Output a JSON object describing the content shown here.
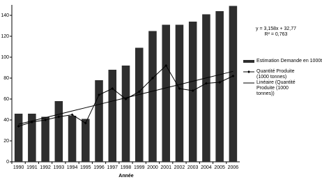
{
  "chart_data": {
    "type": "bar_line",
    "x_label": "Année",
    "categories": [
      "1990",
      "1991",
      "1992",
      "1993",
      "1994",
      "1995",
      "1996",
      "1997",
      "1998",
      "1999",
      "2000",
      "2001",
      "2002",
      "2003",
      "2004",
      "2005",
      "2006"
    ],
    "series": [
      {
        "name": "Estimation Demande en 1000t",
        "kind": "bar",
        "color": "#2e2e2e",
        "values": [
          46,
          46,
          43,
          58,
          44,
          41,
          78,
          88,
          92,
          109,
          125,
          131,
          131,
          134,
          141,
          144,
          149
        ]
      },
      {
        "name": "Quantité Produite (1000 tonnes)",
        "kind": "line",
        "marker": true,
        "color": "#000000",
        "values": [
          34,
          38,
          40,
          43,
          45,
          37,
          64,
          70,
          60,
          67,
          80,
          92,
          70,
          68,
          75,
          76,
          82
        ]
      },
      {
        "name": "Linéaire (Quantité Produite (1000 tonnes))",
        "kind": "line",
        "marker": false,
        "color": "#000000",
        "values": [
          35.928,
          39.086,
          42.244,
          45.402,
          48.56,
          51.718,
          54.876,
          58.034,
          61.192,
          64.35,
          67.508,
          70.666,
          73.824,
          76.982,
          80.14,
          83.298,
          86.456
        ]
      }
    ],
    "annotations": [
      "y = 3,158x + 32,77",
      "R² = 0,763"
    ],
    "ylim": [
      0,
      150
    ],
    "yticks": [
      0,
      20,
      40,
      60,
      80,
      100,
      120,
      140
    ]
  }
}
